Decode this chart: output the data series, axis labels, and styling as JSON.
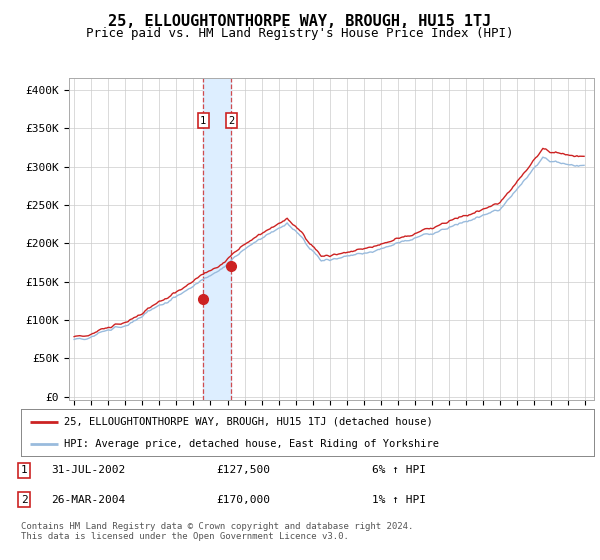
{
  "title": "25, ELLOUGHTONTHORPE WAY, BROUGH, HU15 1TJ",
  "subtitle": "Price paid vs. HM Land Registry's House Price Index (HPI)",
  "title_fontsize": 11,
  "subtitle_fontsize": 9,
  "ylabel_ticks": [
    "£0",
    "£50K",
    "£100K",
    "£150K",
    "£200K",
    "£250K",
    "£300K",
    "£350K",
    "£400K"
  ],
  "ylabel_values": [
    0,
    50000,
    100000,
    150000,
    200000,
    250000,
    300000,
    350000,
    400000
  ],
  "ylim": [
    -5000,
    415000
  ],
  "background_color": "#ffffff",
  "grid_color": "#cccccc",
  "hpi_color": "#99bbdd",
  "price_color": "#cc2222",
  "sale1_date": "31-JUL-2002",
  "sale1_price": 127500,
  "sale1_label": "6% ↑ HPI",
  "sale2_date": "26-MAR-2004",
  "sale2_price": 170000,
  "sale2_label": "1% ↑ HPI",
  "legend_line1": "25, ELLOUGHTONTHORPE WAY, BROUGH, HU15 1TJ (detached house)",
  "legend_line2": "HPI: Average price, detached house, East Riding of Yorkshire",
  "footer": "Contains HM Land Registry data © Crown copyright and database right 2024.\nThis data is licensed under the Open Government Licence v3.0.",
  "sale1_year": 2002.58,
  "sale2_year": 2004.23,
  "highlight_color": "#ddeeff"
}
